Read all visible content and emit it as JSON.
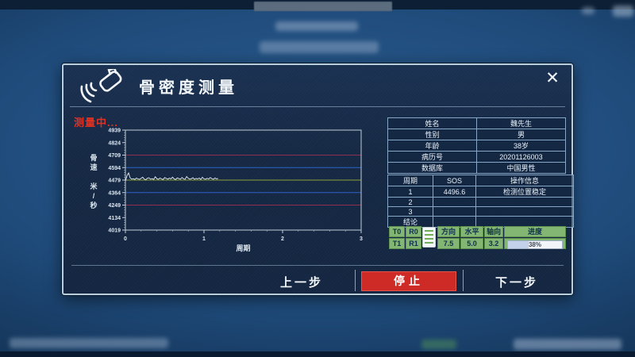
{
  "window": {
    "title": "骨密度测量",
    "close_glyph": "✕",
    "status": "测量中...",
    "accent_red": "#ce2a26",
    "green_cell": "#83b573"
  },
  "patient": {
    "rows": [
      {
        "label": "姓名",
        "value": "魏先生"
      },
      {
        "label": "性别",
        "value": "男"
      },
      {
        "label": "年龄",
        "value": "38岁"
      },
      {
        "label": "病历号",
        "value": "20201126003"
      },
      {
        "label": "数据库",
        "value": "中国男性"
      }
    ]
  },
  "cycles": {
    "headers": [
      "周期",
      "SOS",
      "操作信息"
    ],
    "rows": [
      [
        "1",
        "4496.6",
        "检测位置稳定"
      ],
      [
        "2",
        "",
        ""
      ],
      [
        "3",
        "",
        ""
      ],
      [
        "结论",
        "",
        ""
      ]
    ]
  },
  "probe_panel": {
    "cells": [
      "T0",
      "R0",
      "T1",
      "R1"
    ],
    "metrics": {
      "headers": [
        "方向",
        "水平",
        "轴向",
        "进度"
      ],
      "values": [
        "7.5",
        "5.0",
        "3.2"
      ],
      "progress_percent": 38,
      "progress_label": "38%"
    }
  },
  "buttons": {
    "prev": "上一步",
    "stop": "停止",
    "next": "下一步"
  },
  "chart_data": {
    "type": "line",
    "title": "",
    "xlabel": "周期",
    "ylabel": "骨速 米/秒",
    "ylabel_stack": [
      "骨",
      "速",
      "",
      "米",
      "/",
      "秒"
    ],
    "xlim": [
      0,
      3
    ],
    "ylim": [
      4019,
      4939
    ],
    "xticks": [
      0,
      1,
      2,
      3
    ],
    "yticks": [
      4939,
      4824,
      4709,
      4594,
      4479,
      4364,
      4249,
      4134,
      4019
    ],
    "x_minor_step": 0.2,
    "y_minor_step": 23,
    "grid": false,
    "frame_color": "#c2cfd9",
    "reference_lines": [
      {
        "value": 4709,
        "color": "#8e2f52"
      },
      {
        "value": 4594,
        "color": "#2f62c8"
      },
      {
        "value": 4479,
        "color": "#8aa03a"
      },
      {
        "value": 4364,
        "color": "#2f62c8"
      },
      {
        "value": 4249,
        "color": "#8e2f52"
      }
    ],
    "series": [
      {
        "name": "SOS",
        "color": "#e8eef2",
        "x_start": 0,
        "x_step": 0.02,
        "y": [
          4470,
          4520,
          4545,
          4500,
          4488,
          4492,
          4485,
          4498,
          4490,
          4486,
          4495,
          4505,
          4488,
          4482,
          4496,
          4500,
          4487,
          4493,
          4485,
          4510,
          4492,
          4486,
          4498,
          4490,
          4484,
          4502,
          4494,
          4488,
          4497,
          4491,
          4506,
          4489,
          4485,
          4499,
          4493,
          4487,
          4503,
          4490,
          4486,
          4512,
          4495,
          4488,
          4492,
          4500,
          4486,
          4494,
          4490,
          4498,
          4485,
          4505,
          4491,
          4487,
          4496,
          4489,
          4502,
          4493,
          4486,
          4499,
          4490,
          4494
        ]
      }
    ]
  }
}
